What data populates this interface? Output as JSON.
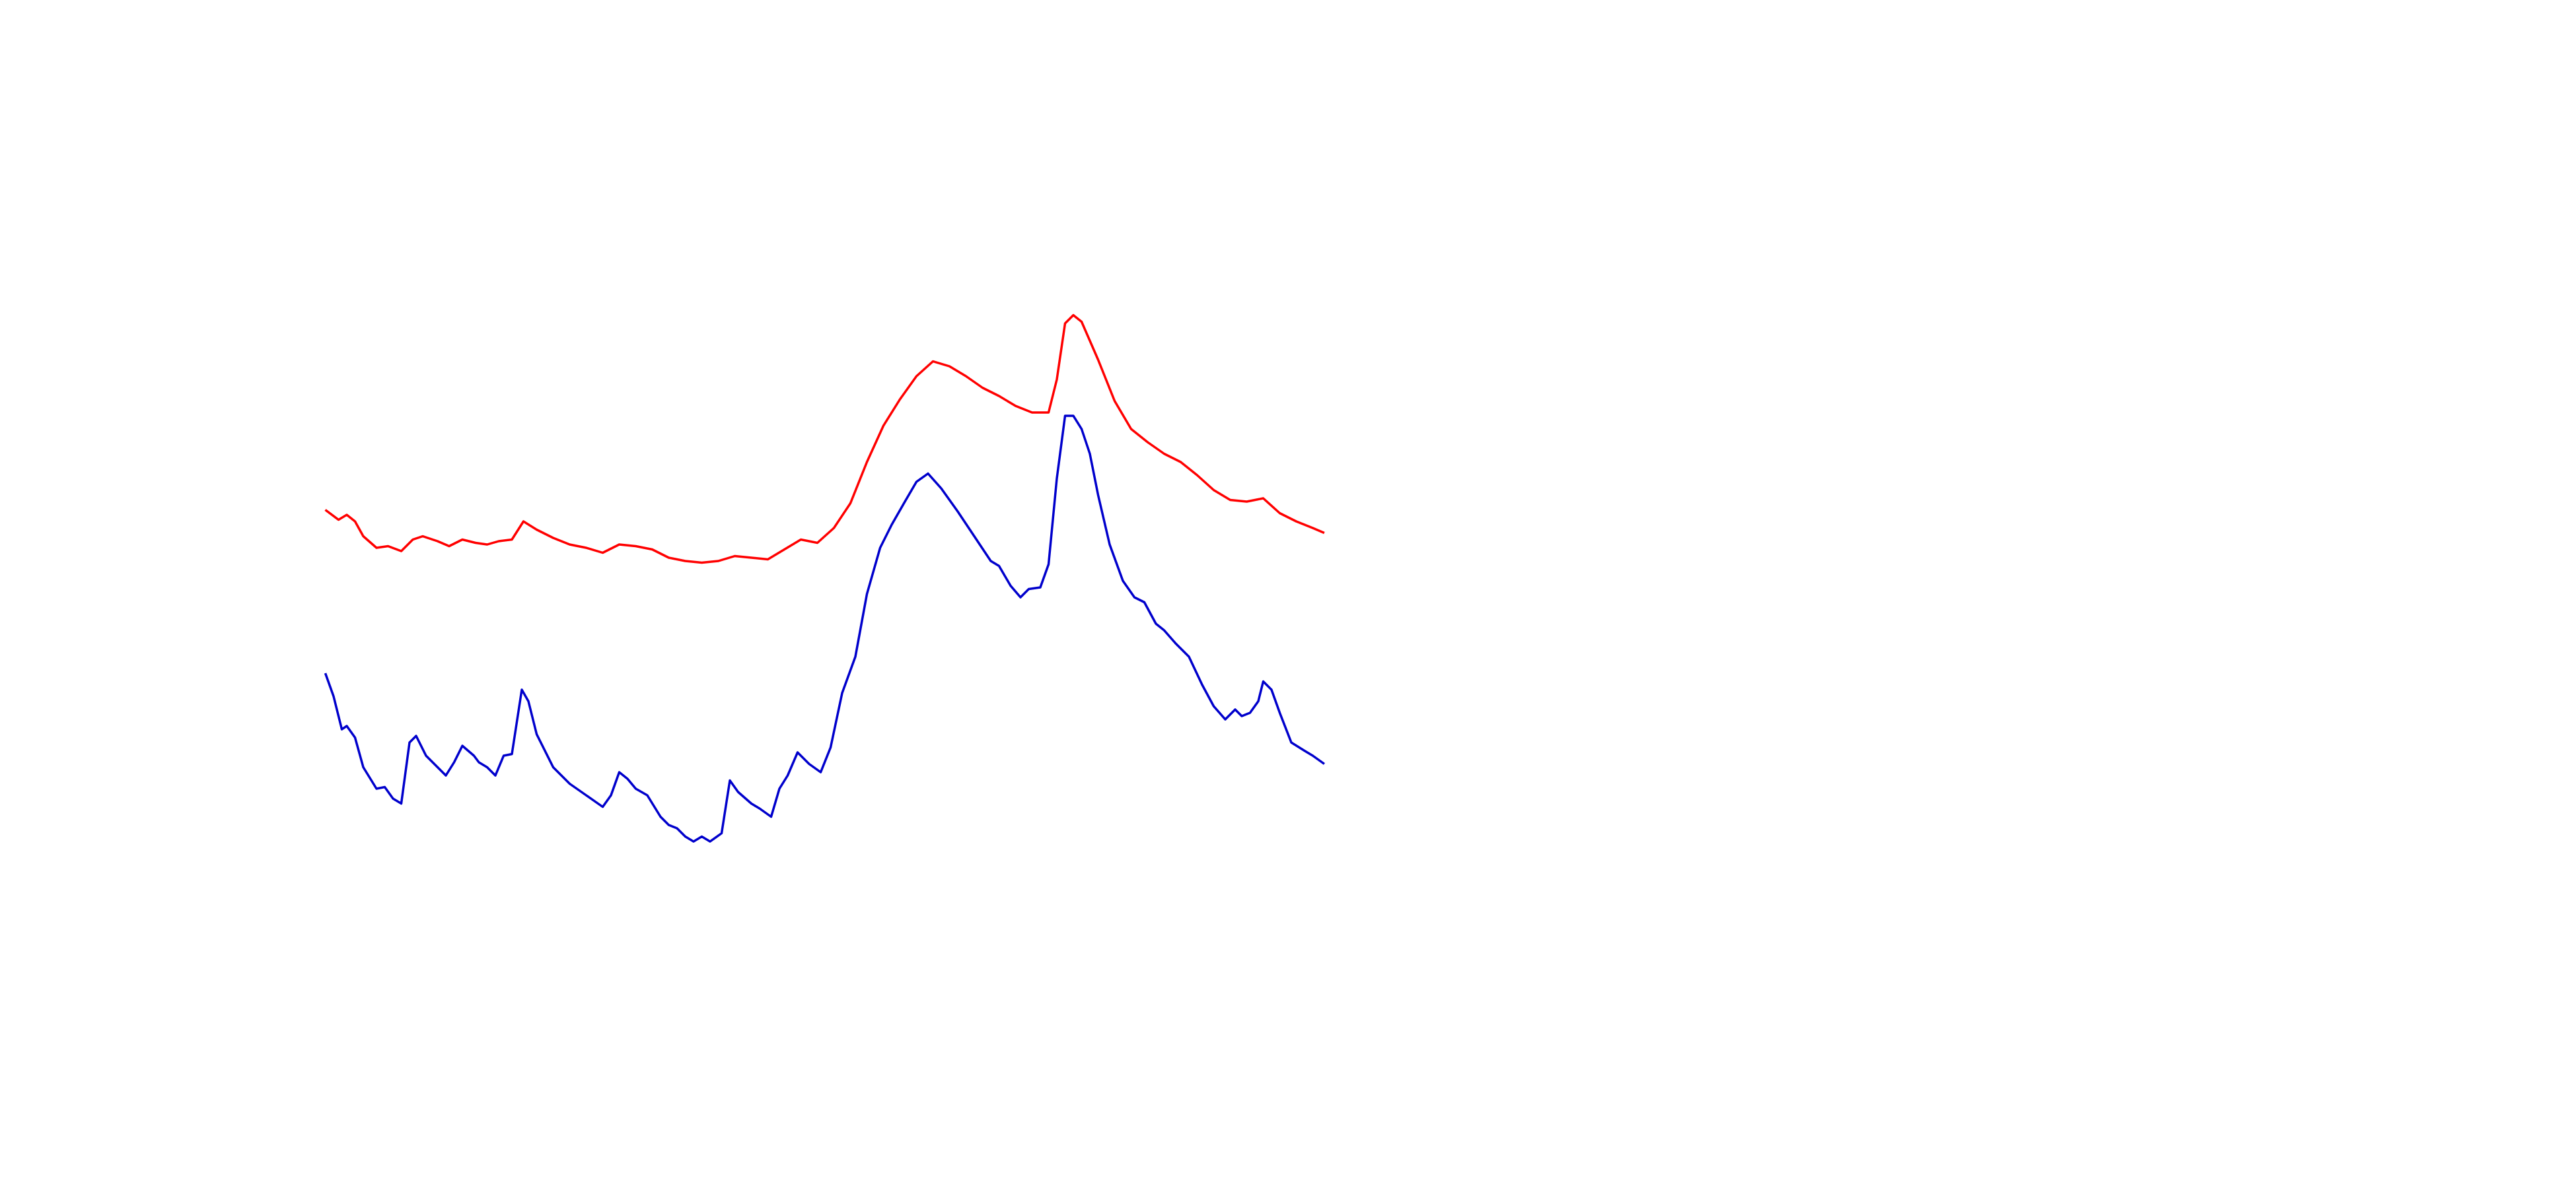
{
  "chart_data": {
    "type": "line",
    "xlim": [
      0,
      1560
    ],
    "ylim": [
      0,
      720
    ],
    "series": [
      {
        "color": "#ff0000",
        "x": [
          197,
          205,
          210,
          215,
          220,
          228,
          235,
          243,
          250,
          256,
          265,
          272,
          280,
          288,
          295,
          302,
          310,
          317,
          325,
          335,
          345,
          355,
          365,
          375,
          385,
          395,
          405,
          415,
          425,
          435,
          445,
          455,
          465,
          475,
          485,
          495,
          505,
          515,
          525,
          535,
          545,
          555,
          565,
          575,
          585,
          595,
          605,
          615,
          625,
          635,
          640,
          645,
          650,
          655,
          665,
          675,
          685,
          695,
          705,
          715,
          725,
          735,
          745,
          755,
          765,
          775,
          785,
          795,
          802
        ],
        "values": [
          411,
          405,
          408,
          404,
          395,
          388,
          389,
          386,
          393,
          395,
          392,
          389,
          393,
          391,
          390,
          392,
          393,
          404,
          399,
          394,
          390,
          388,
          385,
          390,
          389,
          387,
          382,
          380,
          379,
          380,
          383,
          382,
          381,
          387,
          393,
          391,
          400,
          415,
          440,
          462,
          478,
          492,
          501,
          498,
          492,
          485,
          480,
          474,
          470,
          470,
          490,
          524,
          529,
          525,
          502,
          477,
          460,
          452,
          445,
          440,
          432,
          423,
          417,
          416,
          418,
          409,
          404,
          400,
          397
        ]
      },
      {
        "color": "#0000cc",
        "x": [
          197,
          202,
          207,
          210,
          215,
          220,
          228,
          233,
          238,
          243,
          248,
          252,
          258,
          265,
          270,
          275,
          280,
          287,
          290,
          295,
          300,
          305,
          310,
          316,
          320,
          325,
          330,
          335,
          345,
          355,
          365,
          370,
          375,
          380,
          385,
          392,
          400,
          405,
          410,
          415,
          420,
          425,
          430,
          437,
          442,
          447,
          455,
          460,
          467,
          472,
          477,
          483,
          490,
          497,
          503,
          510,
          518,
          525,
          533,
          540,
          548,
          555,
          562,
          570,
          580,
          590,
          600,
          605,
          612,
          618,
          623,
          630,
          635,
          640,
          645,
          650,
          655,
          660,
          665,
          672,
          680,
          687,
          693,
          700,
          705,
          712,
          720,
          728,
          735,
          742,
          748,
          752,
          757,
          762,
          765,
          770,
          775,
          782,
          790,
          795,
          802
        ],
        "values": [
          312,
          298,
          278,
          280,
          273,
          255,
          242,
          243,
          236,
          233,
          270,
          274,
          262,
          255,
          250,
          258,
          268,
          262,
          258,
          255,
          250,
          262,
          263,
          302,
          295,
          275,
          265,
          255,
          245,
          238,
          231,
          238,
          252,
          248,
          242,
          238,
          225,
          220,
          218,
          213,
          210,
          213,
          210,
          215,
          247,
          240,
          233,
          230,
          225,
          242,
          250,
          264,
          257,
          252,
          267,
          300,
          322,
          360,
          388,
          402,
          416,
          428,
          433,
          424,
          410,
          395,
          380,
          377,
          365,
          358,
          363,
          364,
          378,
          430,
          468,
          468,
          460,
          445,
          420,
          390,
          368,
          358,
          355,
          342,
          338,
          330,
          322,
          305,
          292,
          284,
          290,
          286,
          288,
          295,
          307,
          302,
          288,
          270,
          265,
          262,
          257
        ]
      }
    ]
  }
}
